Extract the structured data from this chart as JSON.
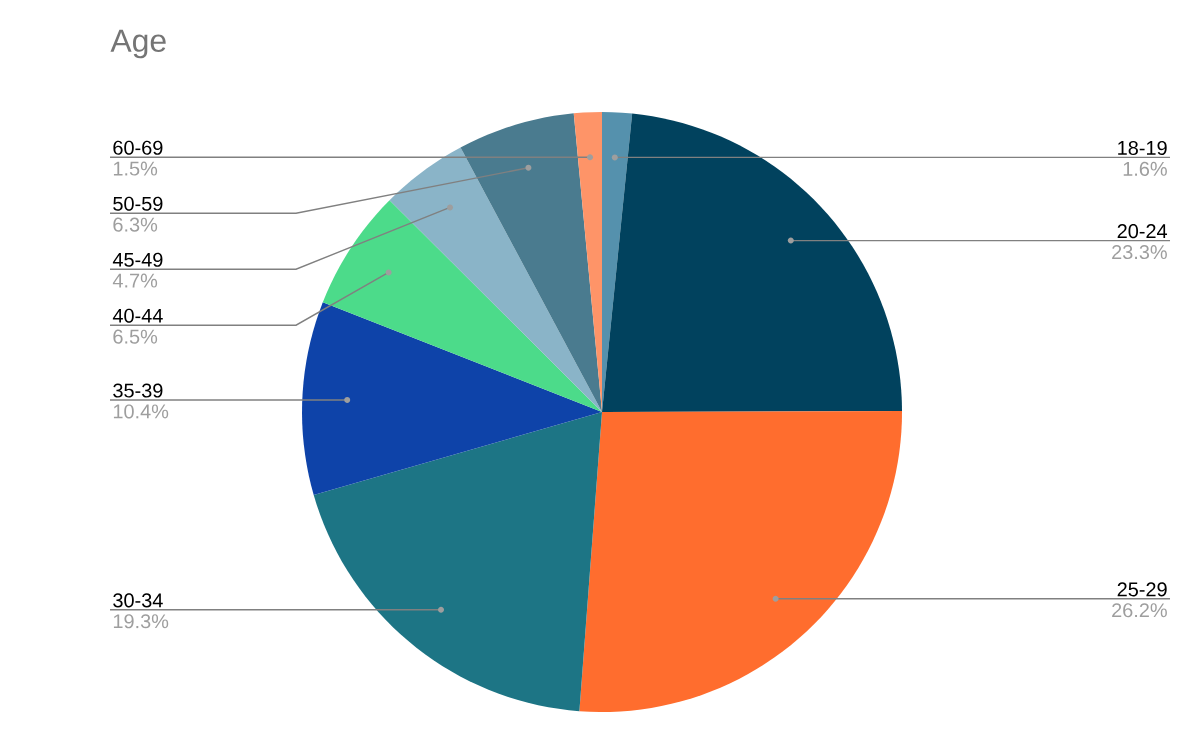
{
  "chart_data": {
    "type": "pie",
    "title": "Age",
    "categories": [
      "18-19",
      "20-24",
      "25-29",
      "30-34",
      "35-39",
      "40-44",
      "45-49",
      "50-59",
      "60-69"
    ],
    "values": [
      1.6,
      23.3,
      26.2,
      19.3,
      10.4,
      6.5,
      4.7,
      6.3,
      1.5
    ],
    "value_labels": [
      "1.6%",
      "23.3%",
      "26.2%",
      "19.3%",
      "10.4%",
      "6.5%",
      "4.7%",
      "6.3%",
      "1.5%"
    ],
    "colors": [
      "#5591ad",
      "#01425e",
      "#ff6d2e",
      "#1d7585",
      "#0e43a9",
      "#4cdb8a",
      "#8ab4c8",
      "#4a7b8f",
      "#fe9468"
    ]
  }
}
